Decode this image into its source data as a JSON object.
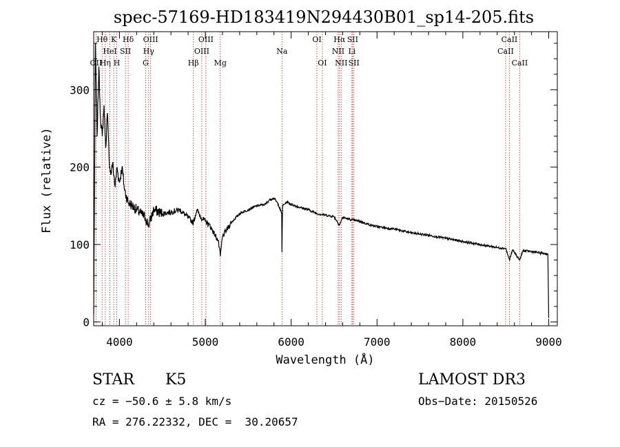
{
  "chart_data": {
    "type": "line",
    "title": "spec-57169-HD183419N294430B01_sp14-205.fits",
    "xlabel": "Wavelength (Å)",
    "ylabel": "Flux (relative)",
    "xlim": [
      3700,
      9100
    ],
    "ylim": [
      -5,
      375
    ],
    "x_ticks": [
      4000,
      5000,
      6000,
      7000,
      8000,
      9000
    ],
    "x_tick_labels": [
      "4000",
      "5000",
      "6000",
      "7000",
      "8000",
      "9000"
    ],
    "y_ticks": [
      0,
      100,
      200,
      300
    ],
    "y_tick_labels": [
      "0",
      "100",
      "200",
      "300"
    ],
    "grid": false,
    "series": [
      {
        "name": "spectrum",
        "x": [
          3700,
          3720,
          3740,
          3760,
          3780,
          3800,
          3820,
          3840,
          3860,
          3880,
          3900,
          3920,
          3950,
          3970,
          4000,
          4030,
          4060,
          4100,
          4150,
          4200,
          4250,
          4300,
          4340,
          4400,
          4500,
          4600,
          4700,
          4800,
          4861,
          4900,
          4950,
          5000,
          5050,
          5100,
          5150,
          5175,
          5200,
          5300,
          5400,
          5500,
          5600,
          5700,
          5750,
          5800,
          5850,
          5890,
          5893,
          5900,
          5950,
          6000,
          6100,
          6200,
          6300,
          6400,
          6500,
          6563,
          6600,
          6700,
          6800,
          6900,
          7000,
          7200,
          7400,
          7600,
          7800,
          8000,
          8200,
          8400,
          8500,
          8542,
          8580,
          8662,
          8700,
          8800,
          8900,
          8990,
          9000
        ],
        "values": [
          10,
          360,
          240,
          330,
          260,
          240,
          280,
          225,
          270,
          210,
          190,
          205,
          175,
          200,
          180,
          200,
          170,
          155,
          150,
          145,
          140,
          135,
          125,
          145,
          140,
          142,
          145,
          135,
          128,
          145,
          135,
          130,
          125,
          115,
          105,
          85,
          110,
          128,
          140,
          145,
          150,
          152,
          158,
          160,
          152,
          140,
          90,
          150,
          155,
          152,
          148,
          145,
          140,
          138,
          136,
          125,
          135,
          132,
          130,
          126,
          123,
          120,
          115,
          112,
          108,
          104,
          100,
          96,
          95,
          80,
          93,
          80,
          92,
          91,
          89,
          88,
          5
        ]
      }
    ],
    "line_labels": [
      {
        "text": "OII",
        "x": 3727,
        "row": 3
      },
      {
        "text": "Hθ",
        "x": 3798,
        "row": 1
      },
      {
        "text": "Hη",
        "x": 3835,
        "row": 3
      },
      {
        "text": "K",
        "x": 3934,
        "row": 1
      },
      {
        "text": "HeI",
        "x": 3889,
        "row": 2
      },
      {
        "text": "H",
        "x": 3969,
        "row": 3
      },
      {
        "text": "SII",
        "x": 4070,
        "row": 2
      },
      {
        "text": "Hδ",
        "x": 4102,
        "row": 1
      },
      {
        "text": "OIII",
        "x": 4363,
        "row": 1
      },
      {
        "text": "Hγ",
        "x": 4340,
        "row": 2
      },
      {
        "text": "G",
        "x": 4305,
        "row": 3
      },
      {
        "text": "OIII",
        "x": 5007,
        "row": 1
      },
      {
        "text": "OIII",
        "x": 4959,
        "row": 2
      },
      {
        "text": "Hβ",
        "x": 4861,
        "row": 3
      },
      {
        "text": "Mg",
        "x": 5175,
        "row": 3
      },
      {
        "text": "Na",
        "x": 5893,
        "row": 2
      },
      {
        "text": "OI",
        "x": 6300,
        "row": 1
      },
      {
        "text": "OI",
        "x": 6363,
        "row": 3
      },
      {
        "text": "Hα",
        "x": 6563,
        "row": 1
      },
      {
        "text": "SII",
        "x": 6716,
        "row": 1
      },
      {
        "text": "NII",
        "x": 6548,
        "row": 2
      },
      {
        "text": "Li",
        "x": 6708,
        "row": 2
      },
      {
        "text": "NII",
        "x": 6583,
        "row": 3
      },
      {
        "text": "SII",
        "x": 6731,
        "row": 3
      },
      {
        "text": "CaII",
        "x": 8542,
        "row": 1
      },
      {
        "text": "CaII",
        "x": 8498,
        "row": 2
      },
      {
        "text": "CaII",
        "x": 8662,
        "row": 3
      }
    ]
  },
  "info": {
    "class_label": "STAR",
    "subclass": "K5",
    "survey": "LAMOST DR3",
    "cz": "cz = −50.6 ± 5.8 km/s",
    "obs_date": "Obs−Date: 20150526",
    "coords": "RA = 276.22332, DEC =  30.20657"
  },
  "colors": {
    "line_marker": "#b22222",
    "spectrum": "#000000",
    "axes": "#000000",
    "background": "#ffffff"
  }
}
